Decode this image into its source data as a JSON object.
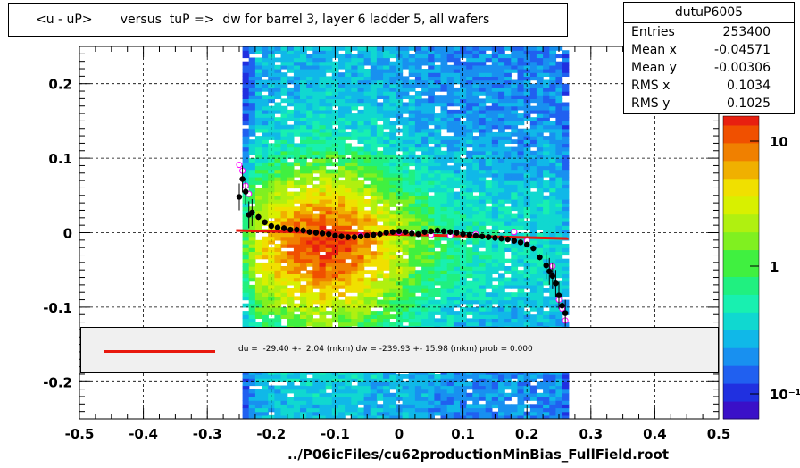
{
  "title": "<u - uP>       versus  tuP =>  dw for barrel 3, layer 6 ladder 5, all wafers",
  "stats": {
    "name": "dutuP6005",
    "rows": [
      {
        "k": "Entries",
        "v": "253400"
      },
      {
        "k": "Mean x",
        "v": "-0.04571"
      },
      {
        "k": "Mean y",
        "v": "-0.00306"
      },
      {
        "k": "RMS x",
        "v": "0.1034"
      },
      {
        "k": "RMS y",
        "v": "0.1025"
      }
    ]
  },
  "fit_text": "du =  -29.40 +-  2.04 (mkm) dw = -239.93 +- 15.98 (mkm) prob = 0.000",
  "footer": "../P06icFiles/cu62productionMinBias_FullField.root",
  "colors": {
    "fit_line": "#e8180e",
    "fit_box": "#f0f0f0",
    "markers": "#000000",
    "open_markers": "#ff00ff"
  },
  "chart_data": {
    "type": "heatmap",
    "xlim": [
      -0.5,
      0.5
    ],
    "ylim": [
      -0.25,
      0.25
    ],
    "x_ticks": [
      "-0.5",
      "-0.4",
      "-0.3",
      "-0.2",
      "-0.1",
      "0",
      "0.1",
      "0.2",
      "0.3",
      "0.4",
      "0.5"
    ],
    "y_ticks": [
      "-0.2",
      "-0.1",
      "0",
      "0.1",
      "0.2"
    ],
    "grid": true,
    "colorbar": {
      "scale": "log",
      "ticks": [
        "10",
        "1",
        "10⁻¹"
      ]
    },
    "fit_line": {
      "x": [
        -0.255,
        0.265
      ],
      "y": [
        0.003,
        -0.008
      ]
    },
    "profile_points": {
      "x": [
        -0.25,
        -0.245,
        -0.24,
        -0.235,
        -0.23,
        -0.22,
        -0.21,
        -0.2,
        -0.19,
        -0.18,
        -0.17,
        -0.16,
        -0.15,
        -0.14,
        -0.13,
        -0.12,
        -0.11,
        -0.1,
        -0.09,
        -0.08,
        -0.07,
        -0.06,
        -0.05,
        -0.04,
        -0.03,
        -0.02,
        -0.01,
        0.0,
        0.01,
        0.02,
        0.03,
        0.04,
        0.05,
        0.06,
        0.07,
        0.08,
        0.09,
        0.1,
        0.11,
        0.12,
        0.13,
        0.14,
        0.15,
        0.16,
        0.17,
        0.18,
        0.19,
        0.2,
        0.21,
        0.22,
        0.23,
        0.235,
        0.24,
        0.245,
        0.25,
        0.255,
        0.26
      ],
      "y": [
        0.048,
        0.072,
        0.055,
        0.024,
        0.027,
        0.021,
        0.014,
        0.009,
        0.007,
        0.006,
        0.004,
        0.004,
        0.003,
        0.001,
        0.0,
        -0.001,
        -0.002,
        -0.004,
        -0.005,
        -0.006,
        -0.006,
        -0.005,
        -0.004,
        -0.003,
        -0.002,
        0.0,
        0.001,
        0.002,
        0.001,
        -0.001,
        -0.002,
        0.001,
        0.002,
        0.003,
        0.002,
        0.001,
        0.0,
        -0.002,
        -0.003,
        -0.004,
        -0.005,
        -0.006,
        -0.007,
        -0.008,
        -0.009,
        -0.011,
        -0.013,
        -0.016,
        -0.021,
        -0.033,
        -0.044,
        -0.052,
        -0.058,
        -0.068,
        -0.084,
        -0.098,
        -0.108
      ]
    },
    "open_points": {
      "x": [
        -0.25,
        -0.245,
        -0.24,
        -0.235,
        -0.06,
        0.0,
        0.05,
        0.08,
        0.12,
        0.18,
        0.2,
        0.24,
        0.25,
        0.255,
        0.26
      ],
      "y": [
        0.091,
        0.083,
        0.063,
        0.052,
        -0.004,
        0.001,
        -0.003,
        -0.004,
        -0.002,
        0.001,
        -0.011,
        -0.045,
        -0.09,
        -0.102,
        -0.118
      ]
    }
  }
}
